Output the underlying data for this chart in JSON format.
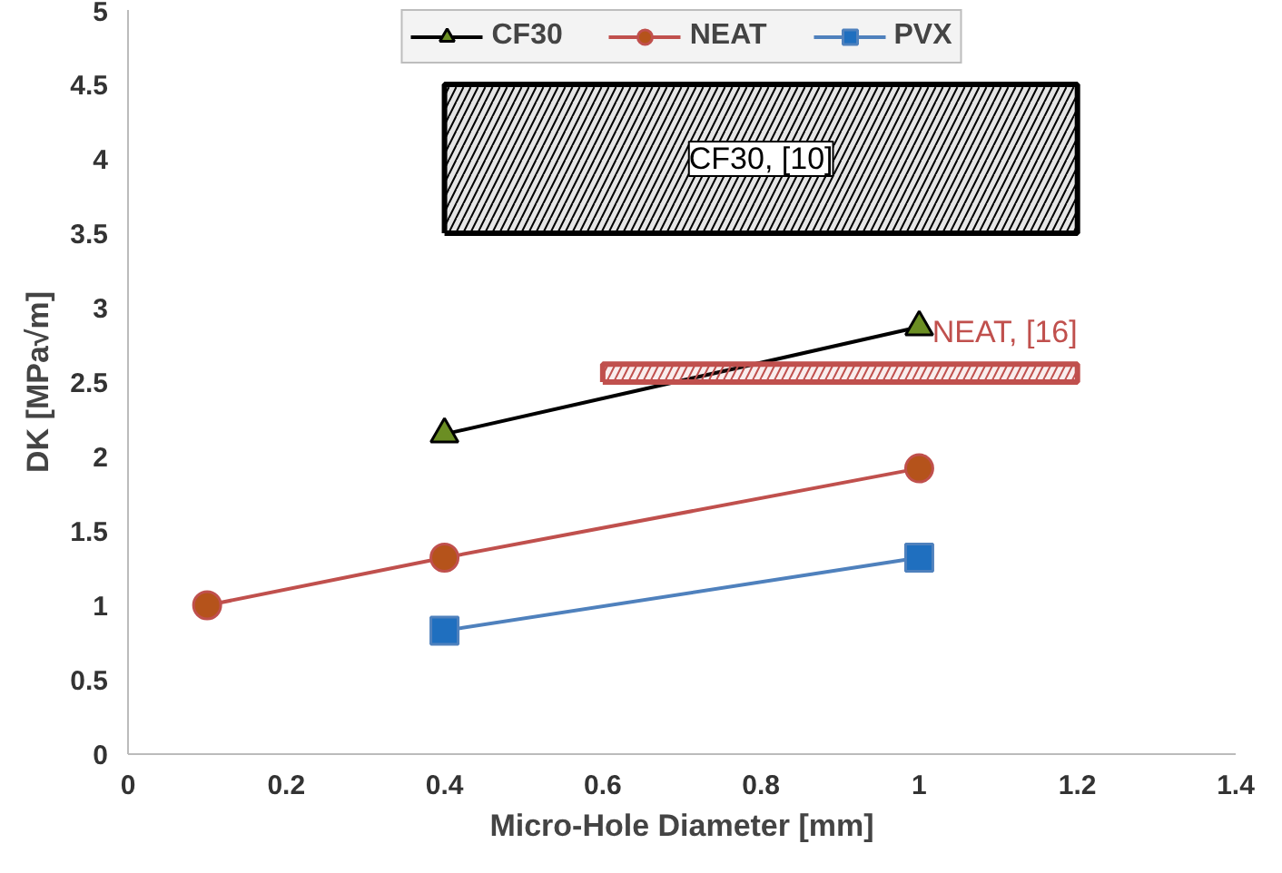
{
  "chart_data": {
    "type": "line",
    "xlabel": "Micro-Hole Diameter [mm]",
    "ylabel": "DK [MPa√m]",
    "xlim": [
      0,
      1.4
    ],
    "xticks": [
      0,
      0.2,
      0.4,
      0.6,
      0.8,
      1,
      1.2,
      1.4
    ],
    "ylim": [
      0,
      5
    ],
    "yticks": [
      0,
      0.5,
      1,
      1.5,
      2,
      2.5,
      3,
      3.5,
      4,
      4.5,
      5
    ],
    "grid": false,
    "legend": "top",
    "line_style": "solid",
    "series": [
      {
        "name": "CF30",
        "color": "#000000",
        "marker": "triangle",
        "x": [
          0.4,
          1
        ],
        "values": [
          2.15,
          2.87
        ]
      },
      {
        "name": "NEAT",
        "color": "#c0504d",
        "marker": "circle",
        "x": [
          0.1,
          0.4,
          1
        ],
        "values": [
          1.0,
          1.32,
          1.92
        ]
      },
      {
        "name": "PVX",
        "color": "#4f81bd",
        "marker": "square",
        "x": [
          0.4,
          1
        ],
        "values": [
          0.83,
          1.32
        ]
      },
      {
        "type": "area",
        "color": "#000000",
        "x": [
          0.4,
          1.2
        ],
        "values": [
          null,
          null
        ],
        "lower": [
          3.5,
          3.5
        ],
        "upper": [
          4.5,
          4.5
        ]
      },
      {
        "type": "area",
        "color": "#c0504d",
        "x": [
          0.6,
          1.2
        ],
        "values": [
          null,
          null
        ],
        "lower": [
          2.5,
          2.5
        ],
        "upper": [
          2.62,
          2.62
        ]
      }
    ],
    "annotations": [
      "CF30, [10]",
      "NEAT, [16]"
    ]
  }
}
